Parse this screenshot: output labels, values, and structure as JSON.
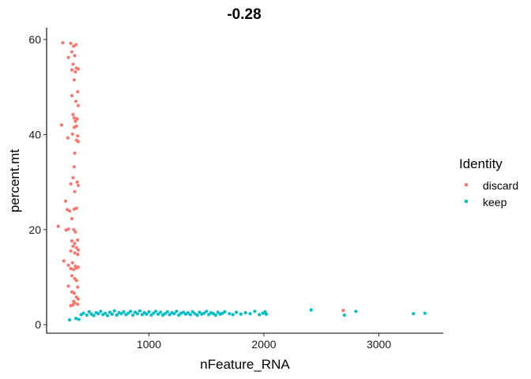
{
  "chart_data": {
    "type": "scatter",
    "title": "-0.28",
    "xlabel": "nFeature_RNA",
    "ylabel": "percent.mt",
    "xlim": [
      110,
      3560
    ],
    "ylim": [
      -1.8,
      62.5
    ],
    "xticks": [
      1000,
      2000,
      3000
    ],
    "yticks": [
      0,
      20,
      40,
      60
    ],
    "grid": false,
    "legend_title": "Identity",
    "legend_position": "right",
    "series": [
      {
        "name": "discard",
        "color": "#F8766D",
        "points": [
          [
            250,
            59.3
          ],
          [
            320,
            59.2
          ],
          [
            345,
            58.6
          ],
          [
            365,
            58.9
          ],
          [
            330,
            57.4
          ],
          [
            355,
            56.6
          ],
          [
            300,
            56.2
          ],
          [
            340,
            54.8
          ],
          [
            370,
            54.0
          ],
          [
            330,
            53.6
          ],
          [
            360,
            53.2
          ],
          [
            385,
            53.8
          ],
          [
            350,
            51.5
          ],
          [
            380,
            49.0
          ],
          [
            330,
            48.2
          ],
          [
            365,
            47.0
          ],
          [
            385,
            46.1
          ],
          [
            340,
            44.2
          ],
          [
            350,
            43.5
          ],
          [
            375,
            43.3
          ],
          [
            360,
            42.8
          ],
          [
            240,
            42.0
          ],
          [
            370,
            41.8
          ],
          [
            350,
            41.5
          ],
          [
            335,
            40.1
          ],
          [
            380,
            39.7
          ],
          [
            295,
            39.3
          ],
          [
            370,
            38.8
          ],
          [
            385,
            38.5
          ],
          [
            355,
            36.1
          ],
          [
            350,
            33.2
          ],
          [
            340,
            30.9
          ],
          [
            375,
            30.0
          ],
          [
            320,
            29.6
          ],
          [
            385,
            29.3
          ],
          [
            355,
            28.0
          ],
          [
            275,
            26.0
          ],
          [
            290,
            24.2
          ],
          [
            350,
            24.3
          ],
          [
            370,
            24.5
          ],
          [
            310,
            23.9
          ],
          [
            330,
            22.3
          ],
          [
            210,
            20.7
          ],
          [
            300,
            20.1
          ],
          [
            280,
            19.9
          ],
          [
            345,
            20.0
          ],
          [
            360,
            19.5
          ],
          [
            380,
            17.8
          ],
          [
            330,
            17.6
          ],
          [
            355,
            17.1
          ],
          [
            340,
            16.5
          ],
          [
            370,
            16.2
          ],
          [
            385,
            15.7
          ],
          [
            320,
            15.5
          ],
          [
            355,
            15.1
          ],
          [
            380,
            14.8
          ],
          [
            260,
            13.4
          ],
          [
            335,
            13.0
          ],
          [
            300,
            12.5
          ],
          [
            360,
            12.3
          ],
          [
            320,
            11.8
          ],
          [
            345,
            11.6
          ],
          [
            370,
            11.9
          ],
          [
            385,
            12.1
          ],
          [
            330,
            10.3
          ],
          [
            355,
            9.7
          ],
          [
            370,
            9.3
          ],
          [
            300,
            8.1
          ],
          [
            380,
            7.9
          ],
          [
            330,
            6.9
          ],
          [
            350,
            6.6
          ],
          [
            370,
            5.8
          ],
          [
            385,
            5.4
          ],
          [
            345,
            4.9
          ],
          [
            355,
            4.6
          ],
          [
            340,
            4.2
          ],
          [
            320,
            4.0
          ],
          [
            380,
            4.3
          ],
          [
            2690,
            3.0
          ]
        ]
      },
      {
        "name": "keep",
        "color": "#00BFC4",
        "points": [
          [
            310,
            1.0
          ],
          [
            365,
            1.3
          ],
          [
            390,
            1.1
          ],
          [
            410,
            2.1
          ],
          [
            430,
            2.4
          ],
          [
            460,
            2.0
          ],
          [
            480,
            2.7
          ],
          [
            500,
            2.2
          ],
          [
            520,
            1.9
          ],
          [
            540,
            2.5
          ],
          [
            560,
            2.3
          ],
          [
            580,
            2.8
          ],
          [
            600,
            2.1
          ],
          [
            620,
            2.4
          ],
          [
            640,
            1.9
          ],
          [
            660,
            2.6
          ],
          [
            680,
            2.2
          ],
          [
            700,
            2.9
          ],
          [
            720,
            2.0
          ],
          [
            740,
            2.5
          ],
          [
            760,
            2.3
          ],
          [
            780,
            2.7
          ],
          [
            800,
            2.1
          ],
          [
            820,
            2.4
          ],
          [
            840,
            2.8
          ],
          [
            860,
            2.0
          ],
          [
            880,
            2.6
          ],
          [
            900,
            2.3
          ],
          [
            920,
            2.9
          ],
          [
            940,
            2.1
          ],
          [
            960,
            2.5
          ],
          [
            980,
            2.2
          ],
          [
            1000,
            2.7
          ],
          [
            1020,
            2.0
          ],
          [
            1040,
            2.4
          ],
          [
            1060,
            2.8
          ],
          [
            1080,
            2.2
          ],
          [
            1100,
            2.6
          ],
          [
            1120,
            2.0
          ],
          [
            1140,
            2.3
          ],
          [
            1160,
            2.7
          ],
          [
            1180,
            2.1
          ],
          [
            1200,
            2.5
          ],
          [
            1220,
            2.3
          ],
          [
            1240,
            2.8
          ],
          [
            1260,
            2.0
          ],
          [
            1280,
            2.4
          ],
          [
            1300,
            2.6
          ],
          [
            1320,
            2.2
          ],
          [
            1340,
            2.5
          ],
          [
            1360,
            2.1
          ],
          [
            1380,
            2.7
          ],
          [
            1400,
            2.3
          ],
          [
            1420,
            2.0
          ],
          [
            1440,
            2.6
          ],
          [
            1460,
            2.2
          ],
          [
            1480,
            2.4
          ],
          [
            1500,
            2.8
          ],
          [
            1520,
            2.1
          ],
          [
            1540,
            2.5
          ],
          [
            1560,
            2.3
          ],
          [
            1580,
            2.0
          ],
          [
            1600,
            2.6
          ],
          [
            1620,
            2.2
          ],
          [
            1640,
            2.4
          ],
          [
            1660,
            2.7
          ],
          [
            1700,
            2.3
          ],
          [
            1730,
            2.1
          ],
          [
            1760,
            2.6
          ],
          [
            1800,
            2.2
          ],
          [
            1840,
            2.5
          ],
          [
            1880,
            2.3
          ],
          [
            1920,
            2.8
          ],
          [
            1960,
            2.1
          ],
          [
            1990,
            2.4
          ],
          [
            2010,
            2.7
          ],
          [
            2020,
            2.2
          ],
          [
            2410,
            3.1
          ],
          [
            2700,
            2.0
          ],
          [
            2800,
            2.8
          ],
          [
            3300,
            2.3
          ],
          [
            3400,
            2.4
          ]
        ]
      }
    ]
  }
}
